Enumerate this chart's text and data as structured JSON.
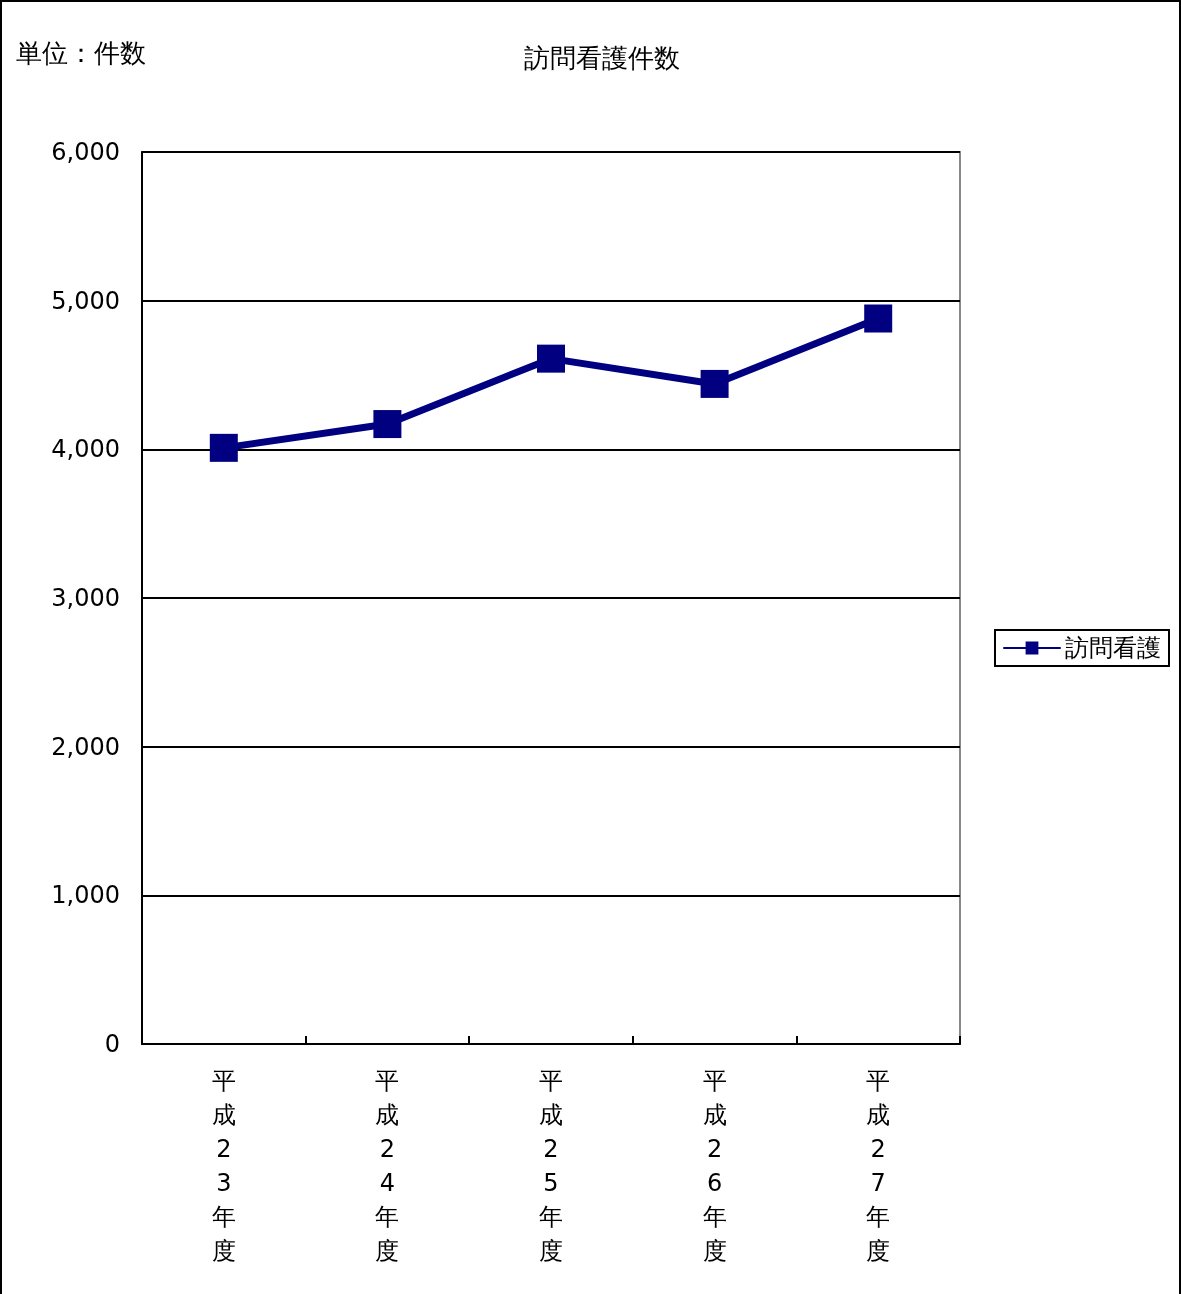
{
  "chart_data": {
    "type": "line",
    "title": "訪問看護件数",
    "annotations": [
      "単位：件数"
    ],
    "categories": [
      "平成23年度",
      "平成24年度",
      "平成25年度",
      "平成26年度",
      "平成27年度"
    ],
    "series": [
      {
        "name": "訪問看護",
        "color": "#000080",
        "values": [
          4010,
          4170,
          4610,
          4440,
          4880
        ]
      }
    ],
    "ylim": [
      0,
      6000
    ],
    "yticks": [
      {
        "value": 0,
        "label": "0"
      },
      {
        "value": 1000,
        "label": "1,000"
      },
      {
        "value": 2000,
        "label": "2,000"
      },
      {
        "value": 3000,
        "label": "3,000"
      },
      {
        "value": 4000,
        "label": "4,000"
      },
      {
        "value": 5000,
        "label": "5,000"
      },
      {
        "value": 6000,
        "label": "6,000"
      }
    ],
    "grid": "y",
    "legend": "right",
    "marker": "square",
    "line_style": "solid"
  }
}
